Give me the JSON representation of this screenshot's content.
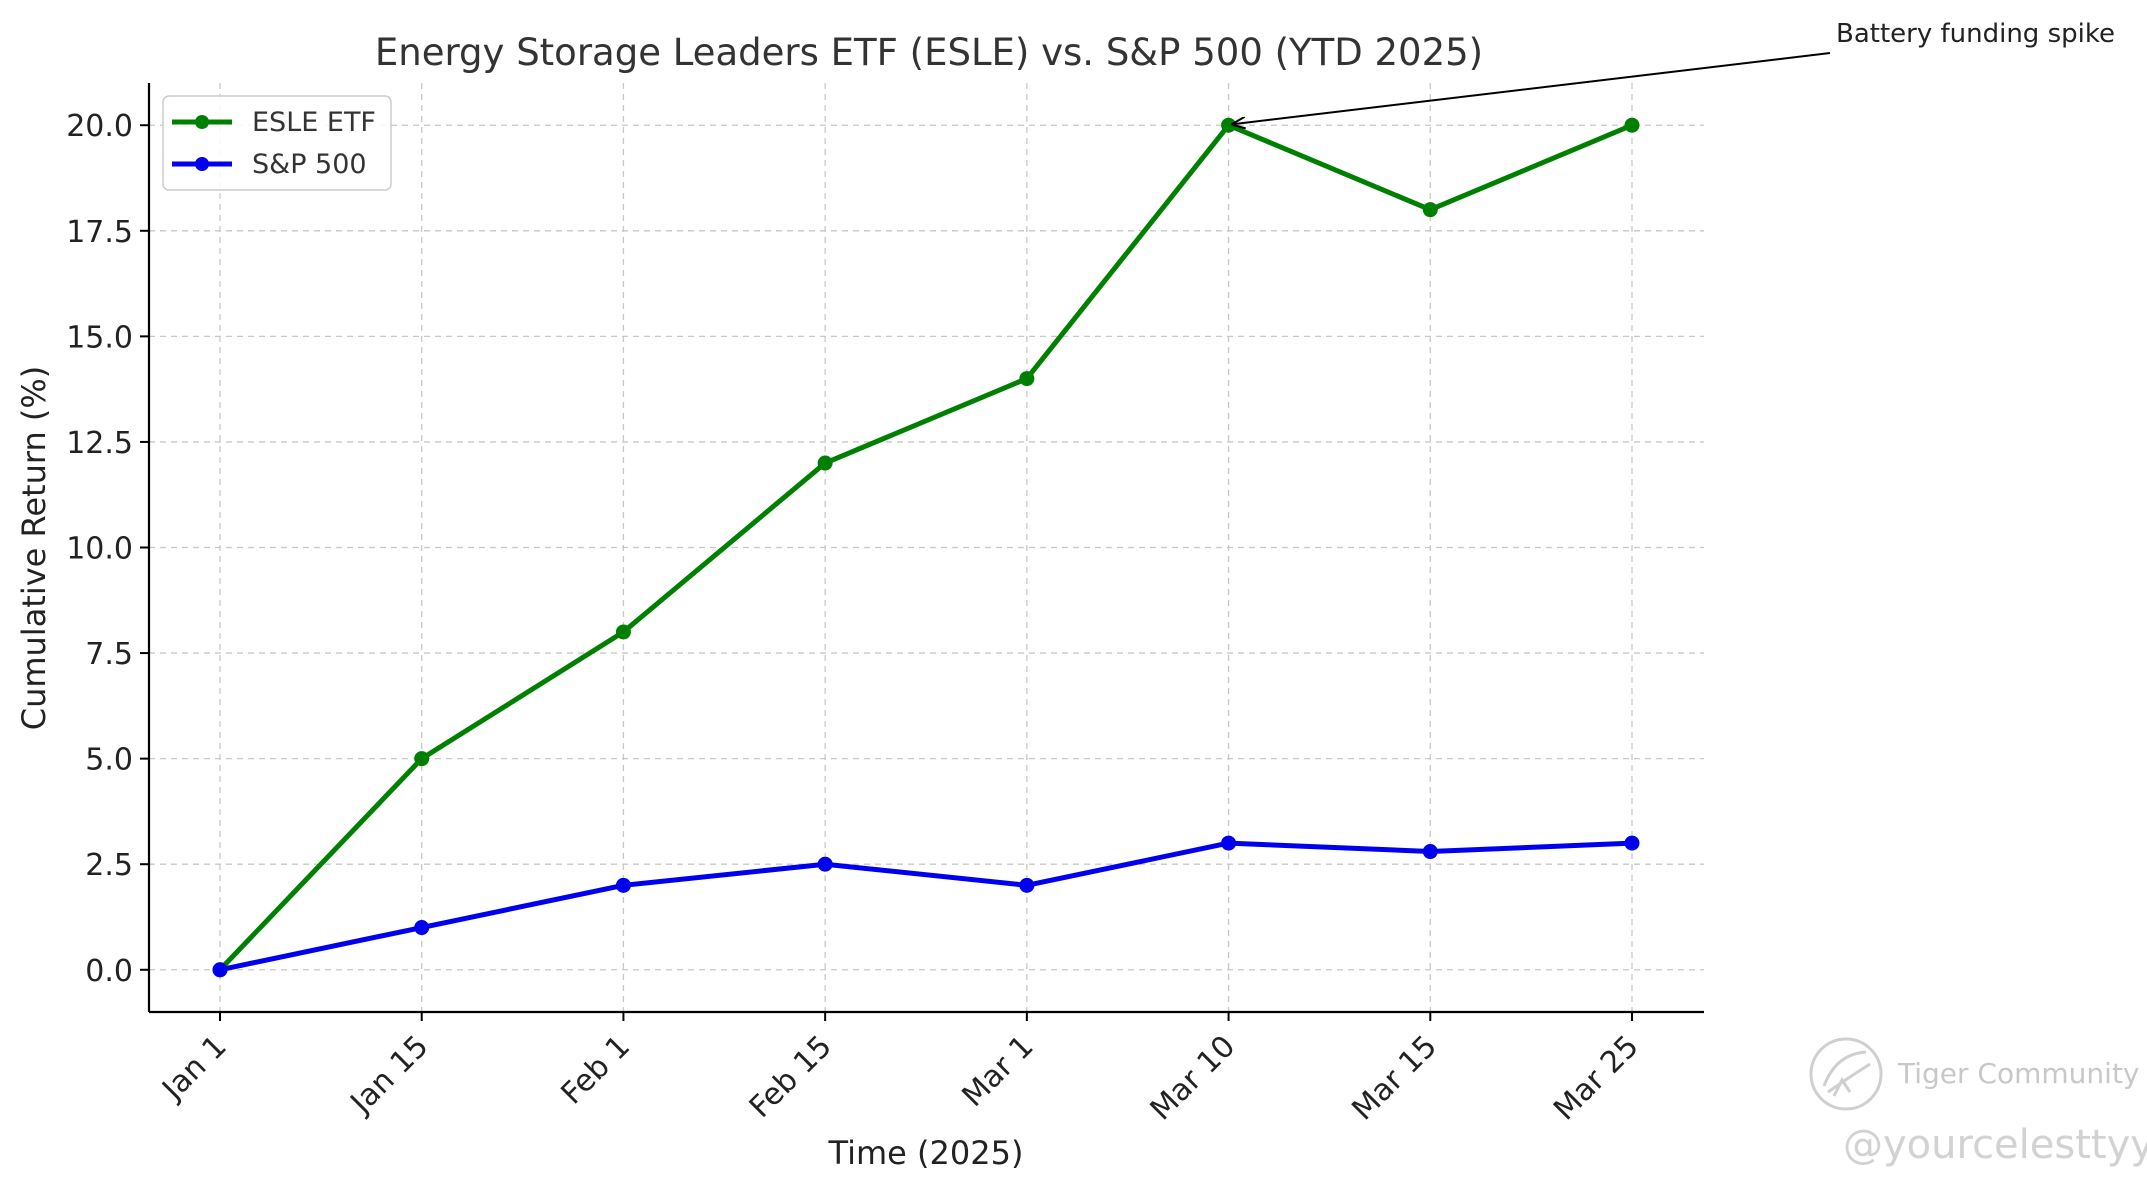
{
  "chart_data": {
    "type": "line",
    "title": "Energy Storage Leaders ETF (ESLE) vs. S&P 500 (YTD 2025)",
    "xlabel": "Time (2025)",
    "ylabel": "Cumulative Return (%)",
    "categories": [
      "Jan 1",
      "Jan 15",
      "Feb 1",
      "Feb 15",
      "Mar 1",
      "Mar 10",
      "Mar 15",
      "Mar 25"
    ],
    "y_ticks": [
      "0.0",
      "2.5",
      "5.0",
      "7.5",
      "10.0",
      "12.5",
      "15.0",
      "17.5",
      "20.0"
    ],
    "ylim": [
      -1,
      21
    ],
    "grid": true,
    "legend_position": "top-left",
    "series": [
      {
        "name": "ESLE ETF",
        "color": "#008000",
        "values": [
          0,
          5,
          8,
          12,
          14,
          20,
          18,
          20
        ]
      },
      {
        "name": "S&P 500",
        "color": "#0000ee",
        "values": [
          0,
          1,
          2,
          2.5,
          2,
          3,
          2.8,
          3
        ]
      }
    ],
    "annotations": [
      {
        "text": "Battery funding spike",
        "category": "Mar 10",
        "y": 20,
        "series": "ESLE ETF"
      }
    ]
  },
  "watermark": {
    "brand": "Tiger Community",
    "handle": "@yourcelesttyy",
    "icon": "tiger-logo-icon"
  }
}
